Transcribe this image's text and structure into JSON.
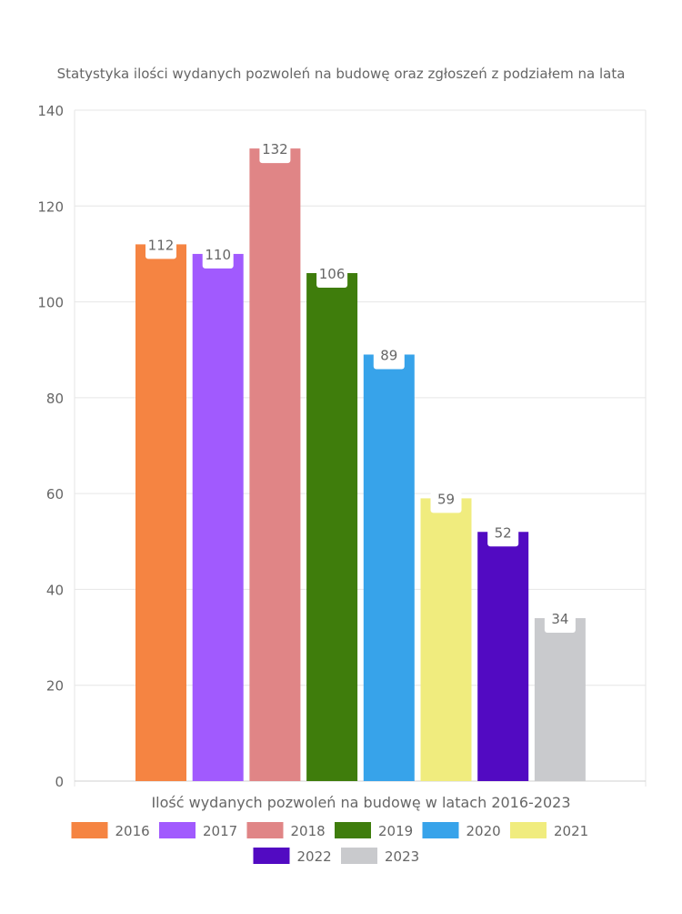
{
  "chart_data": {
    "type": "bar",
    "title": "Statystyka ilości wydanych pozwoleń na budowę oraz zgłoszeń z podziałem na lata",
    "xlabel": "Ilość wydanych pozwoleń na budowę w latach 2016-2023",
    "ylabel": "",
    "ylim": [
      0,
      140
    ],
    "yticks": [
      0,
      20,
      40,
      60,
      80,
      100,
      120,
      140
    ],
    "grid": true,
    "legend_position": "bottom",
    "series": [
      {
        "name": "2016",
        "value": 112,
        "color": "#f58442"
      },
      {
        "name": "2017",
        "value": 110,
        "color": "#a15afe"
      },
      {
        "name": "2018",
        "value": 132,
        "color": "#e08586"
      },
      {
        "name": "2019",
        "value": 106,
        "color": "#3f7d0c"
      },
      {
        "name": "2020",
        "value": 89,
        "color": "#37a3ea"
      },
      {
        "name": "2021",
        "value": 59,
        "color": "#f0ec7e"
      },
      {
        "name": "2022",
        "value": 52,
        "color": "#520ac2"
      },
      {
        "name": "2023",
        "value": 34,
        "color": "#c9cacd"
      }
    ]
  }
}
